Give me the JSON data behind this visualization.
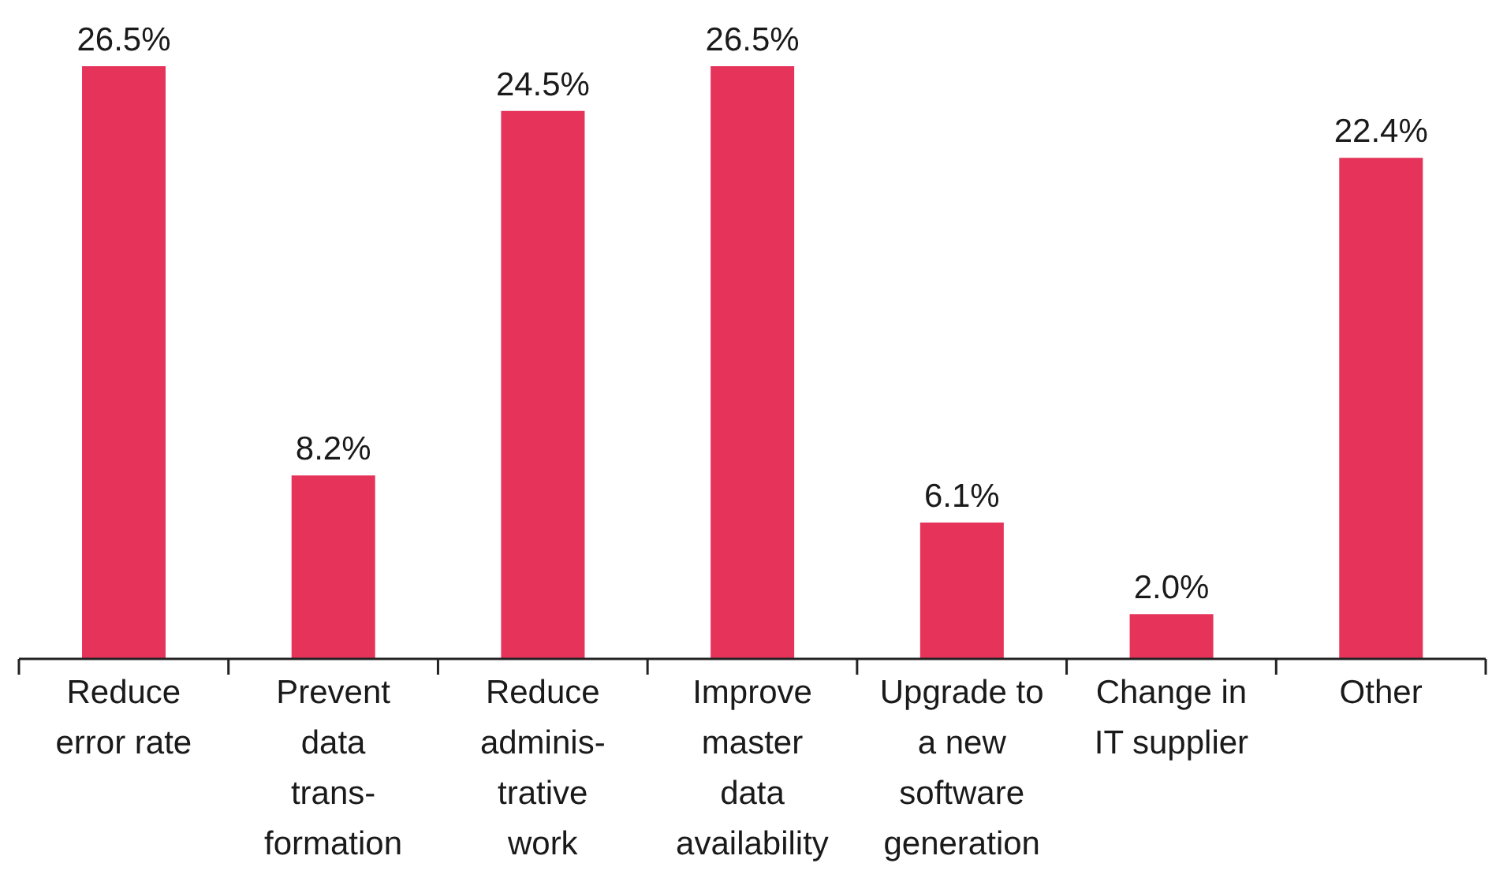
{
  "chart_data": {
    "type": "bar",
    "categories": [
      "Reduce\nerror rate",
      "Prevent\ndata\ntrans-\nformation",
      "Reduce\nadminis-\ntrative\nwork",
      "Improve\nmaster\ndata\navailability",
      "Upgrade to\na new\nsoftware\ngeneration",
      "Change in\nIT supplier",
      "Other"
    ],
    "values": [
      26.5,
      8.2,
      24.5,
      26.5,
      6.1,
      2.0,
      22.4
    ],
    "value_labels": [
      "26.5%",
      "8.2%",
      "24.5%",
      "26.5%",
      "6.1%",
      "2.0%",
      "22.4%"
    ],
    "color": "#e5335a"
  }
}
